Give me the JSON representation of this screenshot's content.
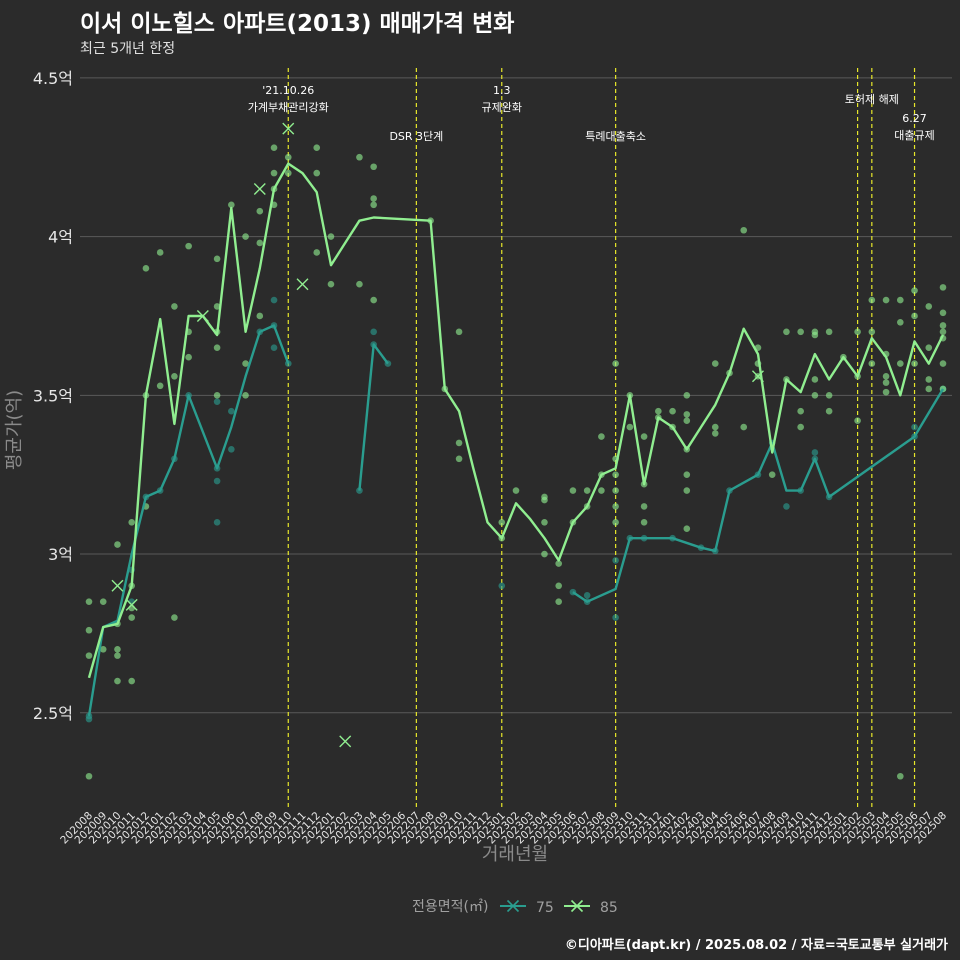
{
  "title": "이서 이노힐스 아파트(2013) 매매가격 변화",
  "subtitle": "최근 5개년 한정",
  "footer": "©디아파트(dapt.kr) / 2025.08.02 / 자료=국토교통부 실거래가",
  "colors": {
    "s75": "#2a9d8f",
    "s85": "#90ee90",
    "event": "#e8e82a"
  },
  "chart_data": {
    "type": "line",
    "xlabel": "거래년월",
    "ylabel": "평균가(억)",
    "ylim": [
      2.2,
      4.55
    ],
    "yticks": [
      2.5,
      3.0,
      3.5,
      4.0,
      4.5
    ],
    "ytick_labels": [
      "2.5억",
      "3억",
      "3.5억",
      "4억",
      "4.5억"
    ],
    "months": [
      "202008",
      "202009",
      "202010",
      "202011",
      "202012",
      "202101",
      "202102",
      "202103",
      "202104",
      "202105",
      "202106",
      "202107",
      "202108",
      "202109",
      "202110",
      "202111",
      "202112",
      "202201",
      "202202",
      "202203",
      "202204",
      "202205",
      "202206",
      "202207",
      "202208",
      "202209",
      "202210",
      "202211",
      "202212",
      "202301",
      "202302",
      "202303",
      "202304",
      "202305",
      "202306",
      "202307",
      "202308",
      "202309",
      "202310",
      "202311",
      "202312",
      "202401",
      "202402",
      "202403",
      "202404",
      "202405",
      "202406",
      "202407",
      "202408",
      "202409",
      "202410",
      "202411",
      "202412",
      "202501",
      "202502",
      "202503",
      "202504",
      "202505",
      "202506",
      "202507",
      "202508"
    ],
    "legend_title": "전용면적(㎡)",
    "series": [
      {
        "name": "75",
        "line": [
          [
            0,
            2.49
          ],
          [
            1,
            2.77
          ],
          [
            2,
            2.79
          ],
          [
            3,
            3.0
          ],
          [
            4,
            3.18
          ],
          [
            5,
            3.2
          ],
          [
            6,
            3.3
          ],
          [
            7,
            3.5
          ],
          [
            9,
            3.27
          ],
          [
            10,
            3.4
          ],
          [
            11,
            3.56
          ],
          [
            12,
            3.7
          ],
          [
            13,
            3.72
          ],
          [
            14,
            3.6
          ],
          [
            null,
            null
          ],
          [
            19,
            3.2
          ],
          [
            20,
            3.66
          ],
          [
            21,
            3.6
          ],
          [
            null,
            null
          ],
          [
            34,
            2.88
          ],
          [
            35,
            2.85
          ],
          [
            37,
            2.89
          ],
          [
            38,
            3.05
          ],
          [
            39,
            3.05
          ],
          [
            41,
            3.05
          ],
          [
            43,
            3.02
          ],
          [
            44,
            3.01
          ],
          [
            45,
            3.2
          ],
          [
            47,
            3.25
          ],
          [
            48,
            3.35
          ],
          [
            49,
            3.2
          ],
          [
            50,
            3.2
          ],
          [
            51,
            3.3
          ],
          [
            52,
            3.18
          ],
          [
            58,
            3.37
          ],
          [
            60,
            3.52
          ]
        ],
        "points": [
          [
            0,
            2.48
          ],
          [
            0,
            2.49
          ],
          [
            3,
            2.85
          ],
          [
            3,
            2.95
          ],
          [
            4,
            3.18
          ],
          [
            5,
            3.2
          ],
          [
            6,
            3.3
          ],
          [
            7,
            3.5
          ],
          [
            9,
            3.1
          ],
          [
            9,
            3.23
          ],
          [
            9,
            3.27
          ],
          [
            9,
            3.48
          ],
          [
            10,
            3.33
          ],
          [
            10,
            3.45
          ],
          [
            12,
            3.7
          ],
          [
            13,
            3.65
          ],
          [
            13,
            3.72
          ],
          [
            13,
            3.8
          ],
          [
            14,
            3.6
          ],
          [
            19,
            3.2
          ],
          [
            20,
            3.7
          ],
          [
            20,
            3.66
          ],
          [
            21,
            3.6
          ],
          [
            29,
            2.9
          ],
          [
            34,
            2.88
          ],
          [
            35,
            2.85
          ],
          [
            35,
            2.87
          ],
          [
            37,
            2.8
          ],
          [
            37,
            2.98
          ],
          [
            38,
            3.05
          ],
          [
            39,
            3.05
          ],
          [
            41,
            3.05
          ],
          [
            43,
            3.02
          ],
          [
            44,
            3.01
          ],
          [
            45,
            3.2
          ],
          [
            47,
            3.25
          ],
          [
            48,
            3.35
          ],
          [
            49,
            3.15
          ],
          [
            50,
            3.2
          ],
          [
            51,
            3.3
          ],
          [
            51,
            3.32
          ],
          [
            52,
            3.18
          ],
          [
            58,
            3.37
          ],
          [
            58,
            3.4
          ],
          [
            60,
            3.52
          ]
        ],
        "crosses": []
      },
      {
        "name": "85",
        "line": [
          [
            0,
            2.61
          ],
          [
            1,
            2.77
          ],
          [
            2,
            2.78
          ],
          [
            3,
            2.9
          ],
          [
            4,
            3.5
          ],
          [
            5,
            3.74
          ],
          [
            6,
            3.41
          ],
          [
            7,
            3.75
          ],
          [
            8,
            3.75
          ],
          [
            9,
            3.69
          ],
          [
            10,
            4.09
          ],
          [
            11,
            3.7
          ],
          [
            12,
            3.9
          ],
          [
            13,
            4.15
          ],
          [
            14,
            4.23
          ],
          [
            15,
            4.2
          ],
          [
            16,
            4.14
          ],
          [
            17,
            3.91
          ],
          [
            18,
            3.98
          ],
          [
            19,
            4.05
          ],
          [
            20,
            4.06
          ],
          [
            24,
            4.05
          ],
          [
            25,
            3.52
          ],
          [
            26,
            3.45
          ],
          [
            27,
            3.27
          ],
          [
            28,
            3.1
          ],
          [
            29,
            3.05
          ],
          [
            30,
            3.16
          ],
          [
            31,
            3.11
          ],
          [
            32,
            3.05
          ],
          [
            33,
            2.98
          ],
          [
            34,
            3.1
          ],
          [
            35,
            3.15
          ],
          [
            36,
            3.25
          ],
          [
            37,
            3.27
          ],
          [
            38,
            3.5
          ],
          [
            39,
            3.22
          ],
          [
            40,
            3.43
          ],
          [
            41,
            3.4
          ],
          [
            42,
            3.33
          ],
          [
            43,
            3.4
          ],
          [
            44,
            3.47
          ],
          [
            45,
            3.57
          ],
          [
            46,
            3.71
          ],
          [
            47,
            3.63
          ],
          [
            48,
            3.32
          ],
          [
            49,
            3.55
          ],
          [
            50,
            3.51
          ],
          [
            51,
            3.63
          ],
          [
            52,
            3.55
          ],
          [
            53,
            3.62
          ],
          [
            54,
            3.56
          ],
          [
            55,
            3.68
          ],
          [
            56,
            3.62
          ],
          [
            57,
            3.5
          ],
          [
            58,
            3.67
          ],
          [
            59,
            3.6
          ],
          [
            60,
            3.69
          ]
        ],
        "points": [
          [
            0,
            2.3
          ],
          [
            0,
            2.68
          ],
          [
            0,
            2.76
          ],
          [
            0,
            2.85
          ],
          [
            1,
            2.7
          ],
          [
            1,
            2.85
          ],
          [
            2,
            2.6
          ],
          [
            2,
            2.68
          ],
          [
            2,
            2.7
          ],
          [
            2,
            2.78
          ],
          [
            2,
            3.03
          ],
          [
            3,
            2.6
          ],
          [
            3,
            2.8
          ],
          [
            3,
            2.83
          ],
          [
            3,
            2.9
          ],
          [
            3,
            3.1
          ],
          [
            4,
            3.15
          ],
          [
            4,
            3.5
          ],
          [
            4,
            3.9
          ],
          [
            5,
            3.95
          ],
          [
            5,
            3.53
          ],
          [
            6,
            2.8
          ],
          [
            6,
            3.56
          ],
          [
            6,
            3.78
          ],
          [
            7,
            3.62
          ],
          [
            7,
            3.7
          ],
          [
            7,
            3.97
          ],
          [
            9,
            3.5
          ],
          [
            9,
            3.65
          ],
          [
            9,
            3.7
          ],
          [
            9,
            3.78
          ],
          [
            9,
            3.93
          ],
          [
            10,
            4.1
          ],
          [
            11,
            3.5
          ],
          [
            11,
            3.6
          ],
          [
            11,
            4.0
          ],
          [
            12,
            3.75
          ],
          [
            12,
            3.98
          ],
          [
            12,
            4.08
          ],
          [
            13,
            4.1
          ],
          [
            13,
            4.15
          ],
          [
            13,
            4.2
          ],
          [
            13,
            4.28
          ],
          [
            14,
            4.2
          ],
          [
            14,
            4.25
          ],
          [
            16,
            4.2
          ],
          [
            16,
            4.28
          ],
          [
            16,
            3.95
          ],
          [
            17,
            3.85
          ],
          [
            17,
            4.0
          ],
          [
            19,
            4.25
          ],
          [
            19,
            3.85
          ],
          [
            20,
            4.22
          ],
          [
            20,
            4.1
          ],
          [
            20,
            4.12
          ],
          [
            20,
            3.8
          ],
          [
            24,
            4.05
          ],
          [
            25,
            3.52
          ],
          [
            26,
            3.7
          ],
          [
            26,
            3.35
          ],
          [
            26,
            3.3
          ],
          [
            29,
            3.05
          ],
          [
            29,
            3.1
          ],
          [
            30,
            3.2
          ],
          [
            32,
            3.18
          ],
          [
            32,
            3.17
          ],
          [
            32,
            3.1
          ],
          [
            32,
            3.0
          ],
          [
            33,
            2.97
          ],
          [
            33,
            2.85
          ],
          [
            33,
            2.9
          ],
          [
            34,
            3.1
          ],
          [
            34,
            3.2
          ],
          [
            35,
            3.2
          ],
          [
            35,
            3.15
          ],
          [
            36,
            3.37
          ],
          [
            36,
            3.25
          ],
          [
            36,
            3.2
          ],
          [
            37,
            3.6
          ],
          [
            37,
            3.3
          ],
          [
            37,
            3.25
          ],
          [
            37,
            3.2
          ],
          [
            37,
            3.15
          ],
          [
            37,
            3.1
          ],
          [
            38,
            3.5
          ],
          [
            38,
            3.4
          ],
          [
            39,
            3.37
          ],
          [
            39,
            3.22
          ],
          [
            39,
            3.15
          ],
          [
            39,
            3.1
          ],
          [
            40,
            3.43
          ],
          [
            40,
            3.45
          ],
          [
            41,
            3.45
          ],
          [
            41,
            3.4
          ],
          [
            42,
            3.5
          ],
          [
            42,
            3.44
          ],
          [
            42,
            3.42
          ],
          [
            42,
            3.33
          ],
          [
            42,
            3.25
          ],
          [
            42,
            3.2
          ],
          [
            42,
            3.08
          ],
          [
            44,
            3.6
          ],
          [
            44,
            3.4
          ],
          [
            44,
            3.38
          ],
          [
            45,
            3.57
          ],
          [
            46,
            4.02
          ],
          [
            46,
            3.4
          ],
          [
            47,
            3.65
          ],
          [
            47,
            3.6
          ],
          [
            47,
            3.56
          ],
          [
            48,
            3.25
          ],
          [
            49,
            3.7
          ],
          [
            49,
            3.55
          ],
          [
            50,
            3.7
          ],
          [
            50,
            3.45
          ],
          [
            50,
            3.4
          ],
          [
            51,
            3.7
          ],
          [
            51,
            3.69
          ],
          [
            51,
            3.55
          ],
          [
            51,
            3.5
          ],
          [
            52,
            3.7
          ],
          [
            52,
            3.5
          ],
          [
            52,
            3.45
          ],
          [
            53,
            3.62
          ],
          [
            54,
            3.7
          ],
          [
            54,
            3.56
          ],
          [
            54,
            3.42
          ],
          [
            55,
            3.8
          ],
          [
            55,
            3.7
          ],
          [
            55,
            3.6
          ],
          [
            56,
            3.8
          ],
          [
            56,
            3.63
          ],
          [
            56,
            3.56
          ],
          [
            56,
            3.54
          ],
          [
            56,
            3.51
          ],
          [
            57,
            3.8
          ],
          [
            57,
            3.73
          ],
          [
            57,
            3.6
          ],
          [
            57,
            2.3
          ],
          [
            58,
            3.83
          ],
          [
            58,
            3.75
          ],
          [
            58,
            3.6
          ],
          [
            59,
            3.78
          ],
          [
            59,
            3.65
          ],
          [
            59,
            3.55
          ],
          [
            59,
            3.52
          ],
          [
            60,
            3.84
          ],
          [
            60,
            3.76
          ],
          [
            60,
            3.72
          ],
          [
            60,
            3.7
          ],
          [
            60,
            3.68
          ],
          [
            60,
            3.6
          ],
          [
            60,
            3.52
          ]
        ],
        "crosses": [
          [
            2,
            2.9
          ],
          [
            3,
            2.84
          ],
          [
            8,
            3.75
          ],
          [
            12,
            4.15
          ],
          [
            14,
            4.34
          ],
          [
            15,
            3.85
          ],
          [
            18,
            2.41
          ],
          [
            47,
            3.56
          ]
        ]
      }
    ],
    "events": [
      {
        "index": 14,
        "label1": "'21.10.26",
        "label2": "가계부채관리강화",
        "level": 0
      },
      {
        "index": 23,
        "label1": "DSR 3단계",
        "label2": "",
        "level": 1
      },
      {
        "index": 29,
        "label1": "1.3",
        "label2": "규제완화",
        "level": 0
      },
      {
        "index": 37,
        "label1": "특례대출축소",
        "label2": "",
        "level": 1
      },
      {
        "index": 54,
        "label1": "",
        "label2": "",
        "level": 0
      },
      {
        "index": 55,
        "label1": "토허제 해제",
        "label2": "",
        "level": 0
      },
      {
        "index": 58,
        "label1": "6.27",
        "label2": "대출규제",
        "level": 1
      }
    ]
  }
}
